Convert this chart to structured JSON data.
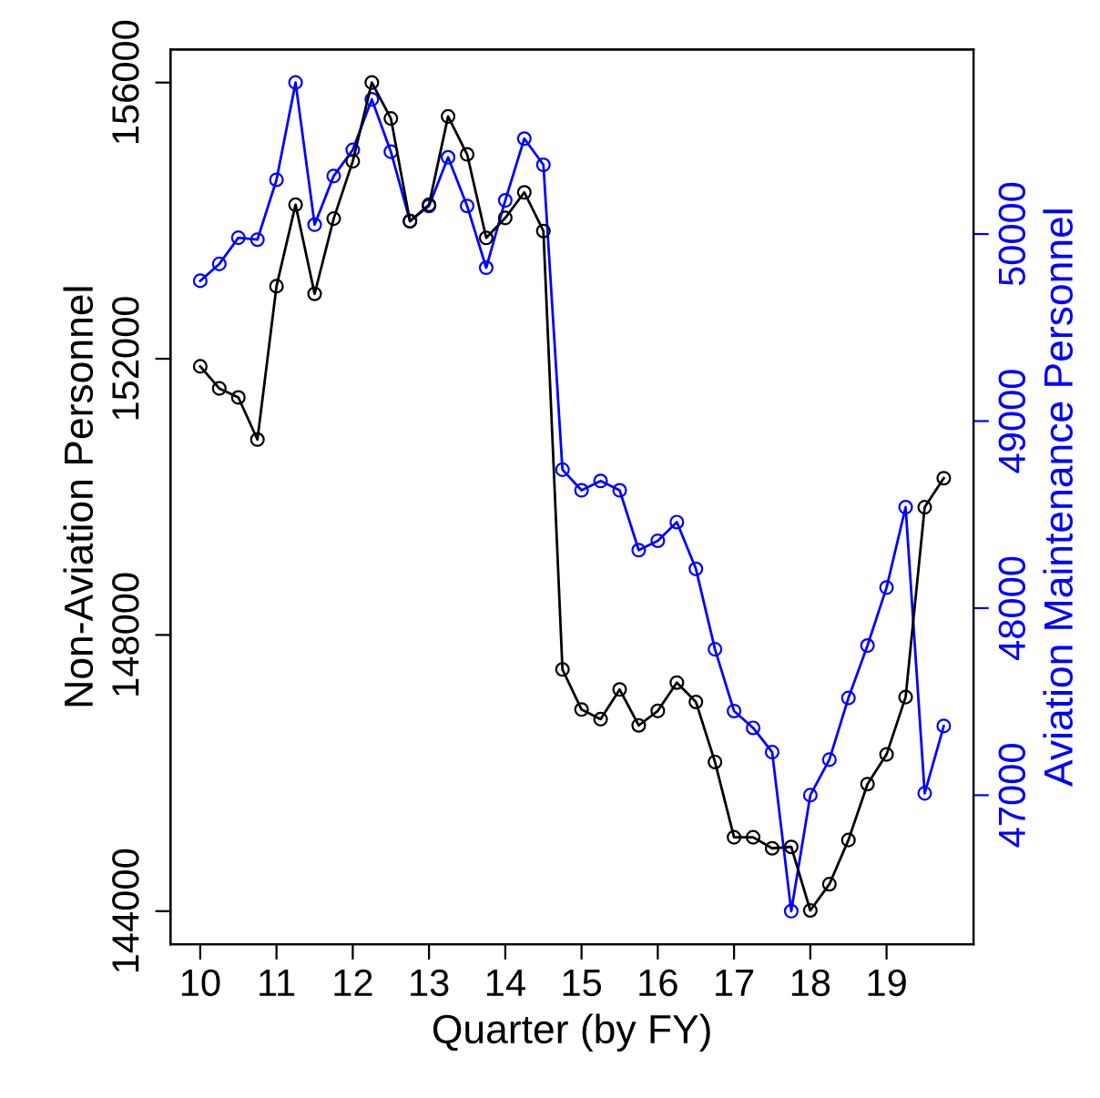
{
  "chart_data": {
    "type": "line",
    "xlabel": "Quarter (by FY)",
    "ylabel": "Non-Aviation Personnel",
    "y2label": "Aviation Maintenance Personnel",
    "x": [
      10,
      10.25,
      10.5,
      10.75,
      11,
      11.25,
      11.5,
      11.75,
      12,
      12.25,
      12.5,
      12.75,
      13,
      13.25,
      13.5,
      13.75,
      14,
      14.25,
      14.5,
      14.75,
      15,
      15.25,
      15.5,
      15.75,
      16,
      16.25,
      16.5,
      16.75,
      17,
      17.25,
      17.5,
      17.75,
      18,
      18.25,
      18.5,
      18.75,
      19,
      19.25,
      19.5,
      19.75
    ],
    "series": [
      {
        "color": "#000000",
        "values": [
          151890,
          151570,
          151440,
          150830,
          153050,
          154230,
          152940,
          154030,
          154860,
          156000,
          155480,
          153990,
          154230,
          155510,
          154960,
          153750,
          154040,
          154410,
          153850,
          147500,
          146920,
          146780,
          147210,
          146690,
          146900,
          147310,
          147030,
          146160,
          145070,
          145070,
          144910,
          144930,
          144010,
          144390,
          145030,
          145840,
          146270,
          147100,
          149850,
          150270
        ]
      },
      {
        "color": "#0000ff",
        "axis": "y2",
        "values": [
          49750,
          49840,
          49980,
          49970,
          50290,
          50810,
          50050,
          50310,
          50450,
          50720,
          50440,
          50070,
          50150,
          50410,
          50150,
          49820,
          50180,
          50510,
          50370,
          48740,
          48630,
          48680,
          48630,
          48310,
          48360,
          48460,
          48210,
          47780,
          47450,
          47360,
          47230,
          46380,
          47000,
          47190,
          47520,
          47800,
          48110,
          48540,
          47010,
          47370
        ]
      }
    ],
    "xlim": [
      9.61,
      20.14
    ],
    "xticks": [
      10,
      11,
      12,
      13,
      14,
      15,
      16,
      17,
      18,
      19
    ],
    "ylim": [
      143520,
      156480
    ],
    "yticks": [
      144000,
      148000,
      152000,
      156000
    ],
    "y2lim": [
      46203,
      50987
    ],
    "y2ticks": [
      47000,
      48000,
      49000,
      50000
    ],
    "marker": "circle",
    "line_style": "solid",
    "grid": false,
    "legend": false
  }
}
